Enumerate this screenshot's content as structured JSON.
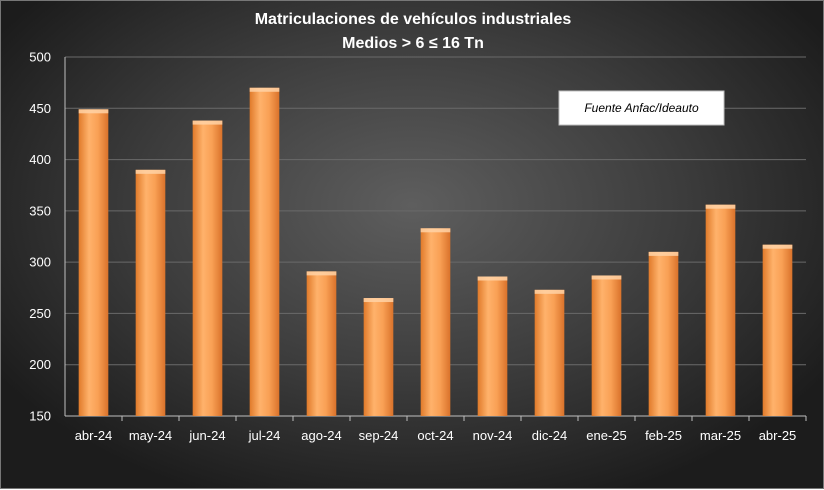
{
  "chart_data": {
    "type": "bar",
    "title": "Matriculaciones de vehículos industriales",
    "subtitle": "Medios > 6 ≤ 16 Tn",
    "categories": [
      "abr-24",
      "may-24",
      "jun-24",
      "jul-24",
      "ago-24",
      "sep-24",
      "oct-24",
      "nov-24",
      "dic-24",
      "ene-25",
      "feb-25",
      "mar-25",
      "abr-25"
    ],
    "values": [
      449,
      390,
      438,
      470,
      291,
      265,
      333,
      286,
      273,
      287,
      310,
      356,
      317
    ],
    "ylim": [
      150,
      500
    ],
    "yticks": [
      "150",
      "200",
      "250",
      "300",
      "350",
      "400",
      "450",
      "500"
    ],
    "xlabel": "",
    "ylabel": "",
    "grid": true,
    "bar_color": "#F79646",
    "annotation": "Fuente Anfac/Ideauto"
  }
}
